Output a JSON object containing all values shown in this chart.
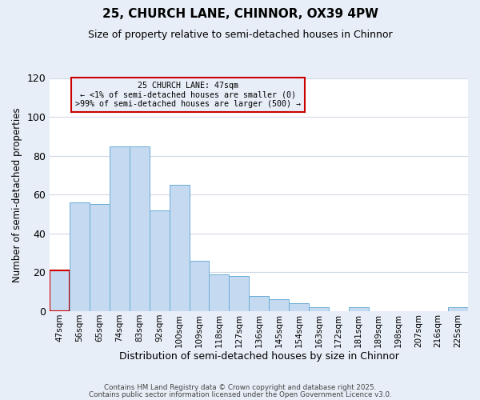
{
  "title": "25, CHURCH LANE, CHINNOR, OX39 4PW",
  "subtitle": "Size of property relative to semi-detached houses in Chinnor",
  "xlabel": "Distribution of semi-detached houses by size in Chinnor",
  "ylabel": "Number of semi-detached properties",
  "categories": [
    "47sqm",
    "56sqm",
    "65sqm",
    "74sqm",
    "83sqm",
    "92sqm",
    "100sqm",
    "109sqm",
    "118sqm",
    "127sqm",
    "136sqm",
    "145sqm",
    "154sqm",
    "163sqm",
    "172sqm",
    "181sqm",
    "189sqm",
    "198sqm",
    "207sqm",
    "216sqm",
    "225sqm"
  ],
  "values": [
    21,
    56,
    55,
    85,
    85,
    52,
    65,
    26,
    19,
    18,
    8,
    6,
    4,
    2,
    0,
    2,
    0,
    0,
    0,
    0,
    2
  ],
  "bar_color": "#c5d9f0",
  "bar_edge_color": "#6baed6",
  "highlight_index": 0,
  "highlight_edge_color": "#cc0000",
  "ylim": [
    0,
    120
  ],
  "yticks": [
    0,
    20,
    40,
    60,
    80,
    100,
    120
  ],
  "annotation_title": "25 CHURCH LANE: 47sqm",
  "annotation_line1": "← <1% of semi-detached houses are smaller (0)",
  "annotation_line2": ">99% of semi-detached houses are larger (500) →",
  "annotation_box_edge": "#cc0000",
  "footer1": "Contains HM Land Registry data © Crown copyright and database right 2025.",
  "footer2": "Contains public sector information licensed under the Open Government Licence v3.0.",
  "fig_bg_color": "#e8eef7",
  "plot_bg_color": "#ffffff",
  "grid_color": "#d0d8e8",
  "title_fontsize": 11,
  "subtitle_fontsize": 9
}
